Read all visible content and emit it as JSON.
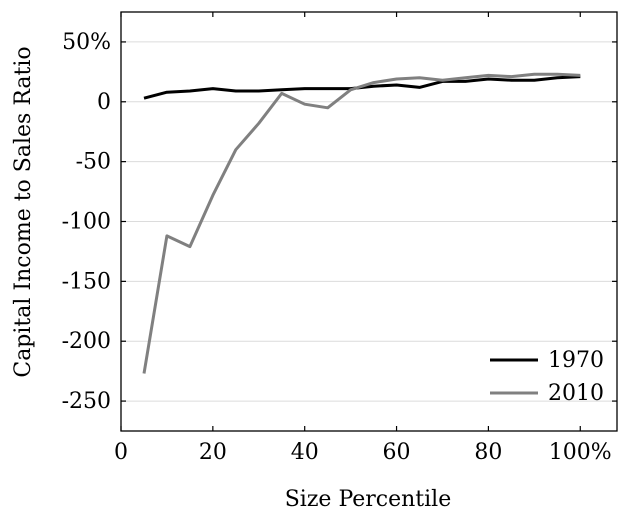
{
  "chart_data": {
    "type": "line",
    "xlabel": "Size Percentile",
    "ylabel": "Capital Income to Sales Ratio",
    "xlim": [
      0,
      108
    ],
    "ylim": [
      -275,
      75
    ],
    "x_ticks": [
      {
        "value": 0,
        "label": "0"
      },
      {
        "value": 20,
        "label": "20"
      },
      {
        "value": 40,
        "label": "40"
      },
      {
        "value": 60,
        "label": "60"
      },
      {
        "value": 80,
        "label": "80"
      },
      {
        "value": 100,
        "label": "100%"
      }
    ],
    "y_ticks": [
      {
        "value": 50,
        "label": "50%"
      },
      {
        "value": 0,
        "label": "0"
      },
      {
        "value": -50,
        "label": "-50"
      },
      {
        "value": -100,
        "label": "-100"
      },
      {
        "value": -150,
        "label": "-150"
      },
      {
        "value": -200,
        "label": "-200"
      },
      {
        "value": -250,
        "label": "-250"
      }
    ],
    "grid": "horizontal",
    "legend_position": "bottom-right",
    "x": [
      5,
      10,
      15,
      20,
      25,
      30,
      35,
      40,
      45,
      50,
      55,
      60,
      65,
      70,
      75,
      80,
      85,
      90,
      95,
      100
    ],
    "series": [
      {
        "name": "1970",
        "color": "#000000",
        "values": [
          3,
          8,
          9,
          11,
          9,
          9,
          10,
          11,
          11,
          11,
          13,
          14,
          12,
          17,
          17,
          19,
          18,
          18,
          20,
          21
        ]
      },
      {
        "name": "2010",
        "color": "#808080",
        "values": [
          -227,
          -112,
          -121,
          -78,
          -40,
          -18,
          7,
          -2,
          -5,
          10,
          16,
          19,
          20,
          18,
          20,
          22,
          21,
          23,
          23,
          22
        ]
      }
    ]
  }
}
